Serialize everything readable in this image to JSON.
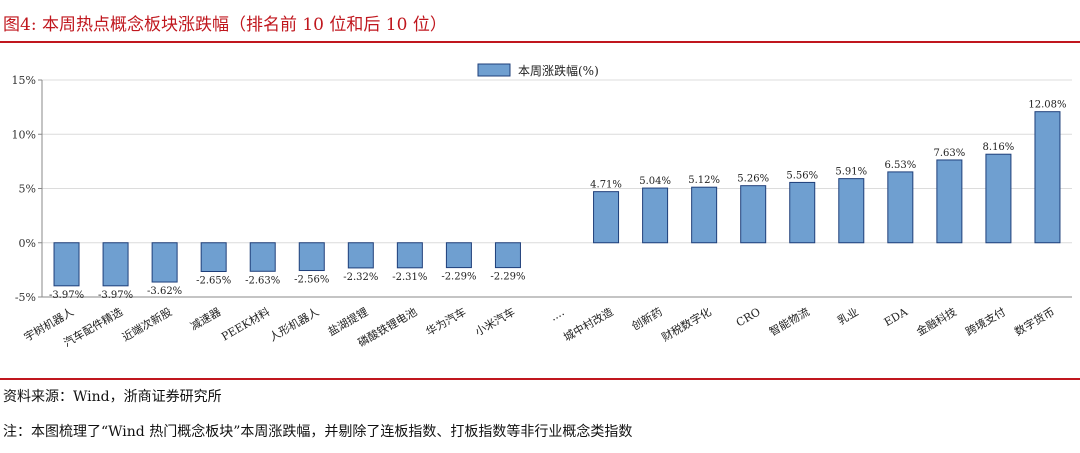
{
  "figure": {
    "title": "图4:   本周热点概念板块涨跌幅（排名前 10 位和后 10 位）",
    "source": "资料来源：Wind，浙商证券研究所",
    "note": "注：本图梳理了“Wind 热门概念板块”本周涨跌幅，并剔除了连板指数、打板指数等非行业概念类指数"
  },
  "colors": {
    "title": "#c0171e",
    "rule": "#c0171e",
    "bar_fill": "#6f9fd0",
    "bar_stroke": "#1f3f7a",
    "grid": "#dcdcdc"
  },
  "chart_data": {
    "type": "bar",
    "legend": {
      "label": "本周涨跌幅(%)",
      "position": "top-center"
    },
    "categories": [
      "宇树机器人",
      "汽车配件精选",
      "近端次新股",
      "减速器",
      "PEEK材料",
      "人形机器人",
      "盐湖提锂",
      "磷酸铁锂电池",
      "华为汽车",
      "小米汽车",
      "....",
      "城中村改造",
      "创新药",
      "财税数字化",
      "CRO",
      "智能物流",
      "乳业",
      "EDA",
      "金融科技",
      "跨境支付",
      "数字货币"
    ],
    "values": [
      -3.97,
      -3.97,
      -3.62,
      -2.65,
      -2.63,
      -2.56,
      -2.32,
      -2.31,
      -2.29,
      -2.29,
      null,
      4.71,
      5.04,
      5.12,
      5.26,
      5.56,
      5.91,
      6.53,
      7.63,
      8.16,
      12.08
    ],
    "data_labels": [
      "-3.97%",
      "-3.97%",
      "-3.62%",
      "-2.65%",
      "-2.63%",
      "-2.56%",
      "-2.32%",
      "-2.31%",
      "-2.29%",
      "-2.29%",
      "",
      "4.71%",
      "5.04%",
      "5.12%",
      "5.26%",
      "5.56%",
      "5.91%",
      "6.53%",
      "7.63%",
      "8.16%",
      "12.08%"
    ],
    "y_ticks": [
      "-5%",
      "0%",
      "5%",
      "10%",
      "15%"
    ],
    "y_tick_values": [
      -5,
      0,
      5,
      10,
      15
    ],
    "ylim": [
      -5,
      15
    ],
    "grid": true
  }
}
